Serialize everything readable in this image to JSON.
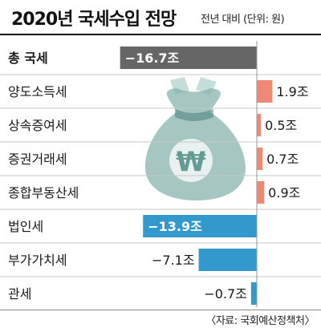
{
  "title": "2020년 국세수입 전망",
  "subtitle": "전년 대비 (단위: 원)",
  "source": "〈자료: 국회예산정책처〉",
  "chart_data": {
    "type": "bar",
    "orientation": "horizontal",
    "title": "2020년 국세수입 전망",
    "categories": [
      "총 국세",
      "양도소득세",
      "상속증여세",
      "증권거래세",
      "종합부동산세",
      "법인세",
      "부가가치세",
      "관세"
    ],
    "values": [
      -16.7,
      1.9,
      0.5,
      0.7,
      0.9,
      -13.9,
      -7.1,
      -0.7
    ],
    "value_labels": [
      "−16.7조",
      "1.9조",
      "0.5조",
      "0.7조",
      "0.9조",
      "−13.9조",
      "−7.1조",
      "−0.7조"
    ],
    "unit": "조",
    "colors": {
      "total": "#666666",
      "positive": "#f08876",
      "negative": "#3399cc"
    },
    "icon": "money-bag-won-icon"
  }
}
